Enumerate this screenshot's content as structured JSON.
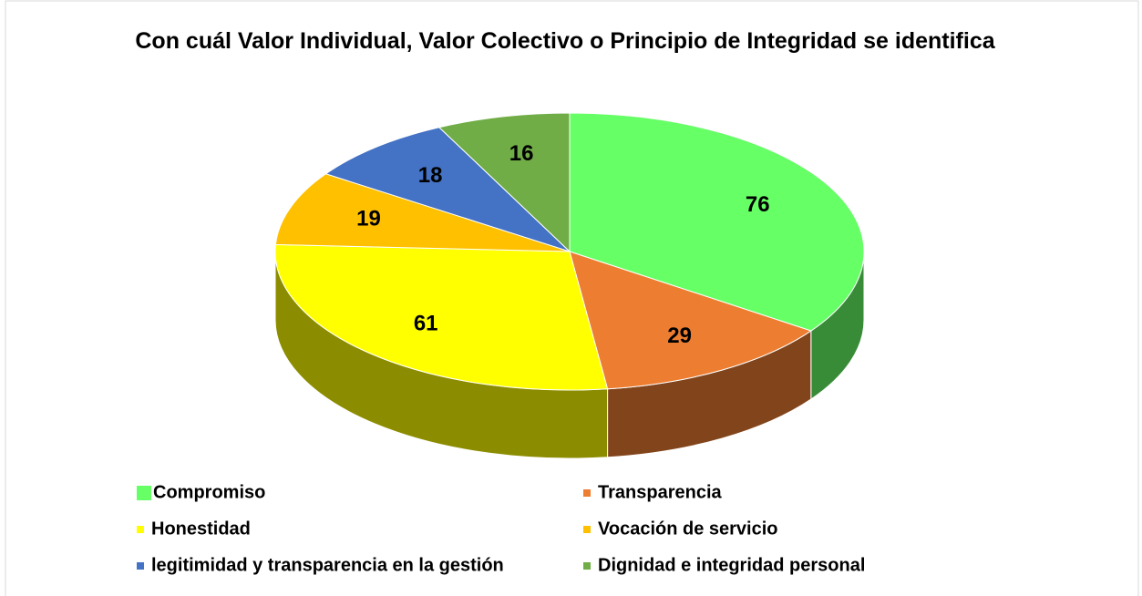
{
  "chart_data": {
    "type": "pie",
    "title": "Con cuál Valor Individual, Valor Colectivo o Principio de Integridad se identifica",
    "categories": [
      "Compromiso",
      "Transparencia",
      "Honestidad",
      "Vocación de servicio",
      "legitimidad y transparencia en la gestión",
      "Dignidad e integridad personal"
    ],
    "values": [
      76,
      29,
      61,
      19,
      18,
      16
    ],
    "colors": [
      "#66ff66",
      "#ed7d31",
      "#ffff00",
      "#ffc000",
      "#4472c4",
      "#70ad47"
    ],
    "legend": "bottom"
  }
}
